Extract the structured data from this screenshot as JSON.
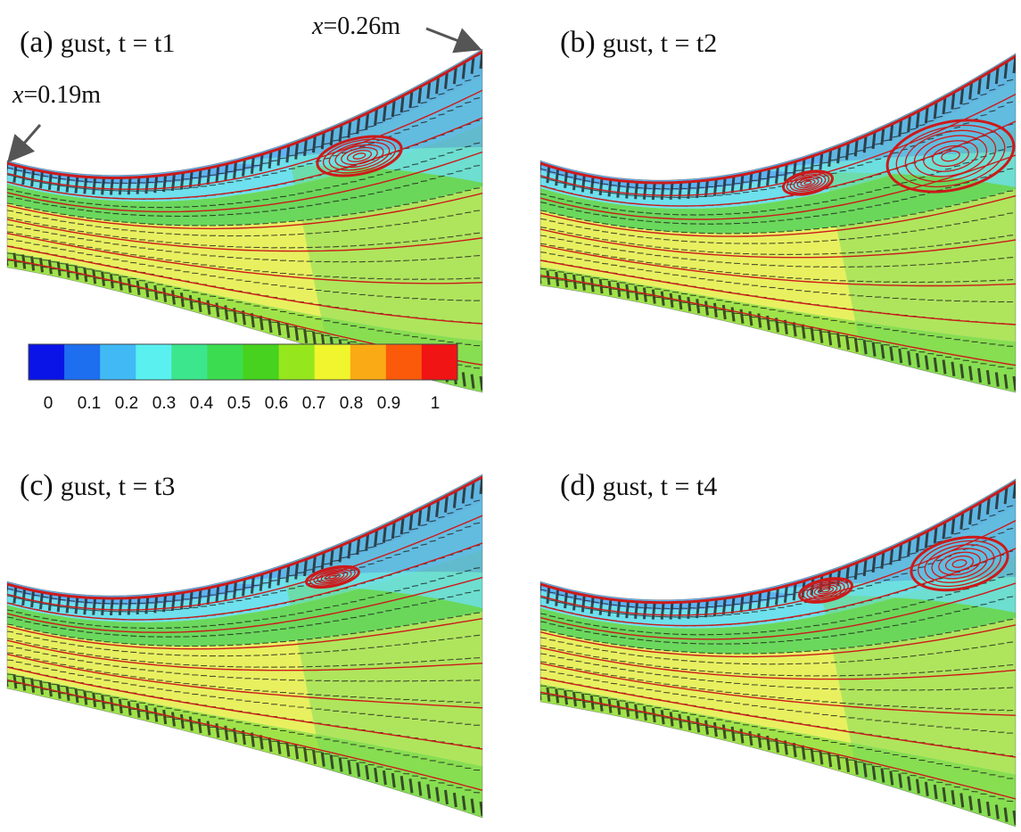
{
  "panels": [
    {
      "id": "a",
      "label": "(a)",
      "title": "gust, t = t1"
    },
    {
      "id": "b",
      "label": "(b)",
      "title": "gust, t = t2"
    },
    {
      "id": "c",
      "label": "(c)",
      "title": "gust, t = t3"
    },
    {
      "id": "d",
      "label": "(d)",
      "title": "gust, t = t4"
    }
  ],
  "annotations": {
    "left": {
      "var": "x",
      "text": "=0.19m"
    },
    "right": {
      "var": "x",
      "text": "=0.26m"
    }
  },
  "colorbar": {
    "colors": [
      "#0a14e6",
      "#1e6ef0",
      "#41b9f5",
      "#5af0f0",
      "#3ce68c",
      "#3cdc50",
      "#46d21e",
      "#96e61e",
      "#f0f52d",
      "#faaa14",
      "#fa5a0a",
      "#f01414"
    ],
    "ticks": [
      "0",
      "0.1",
      "0.2",
      "0.3",
      "0.4",
      "0.5",
      "0.6",
      "0.7",
      "0.8",
      "0.9",
      "1"
    ]
  },
  "field_colors": {
    "core": "#e8f060",
    "mid": "#9fe34a",
    "green": "#6ad85c",
    "teal": "#50d8b0",
    "cyan": "#6ee0ee",
    "blue": "#5fb2f2",
    "streamline": "#cc1a1a",
    "vector": "#1a1a1a"
  }
}
